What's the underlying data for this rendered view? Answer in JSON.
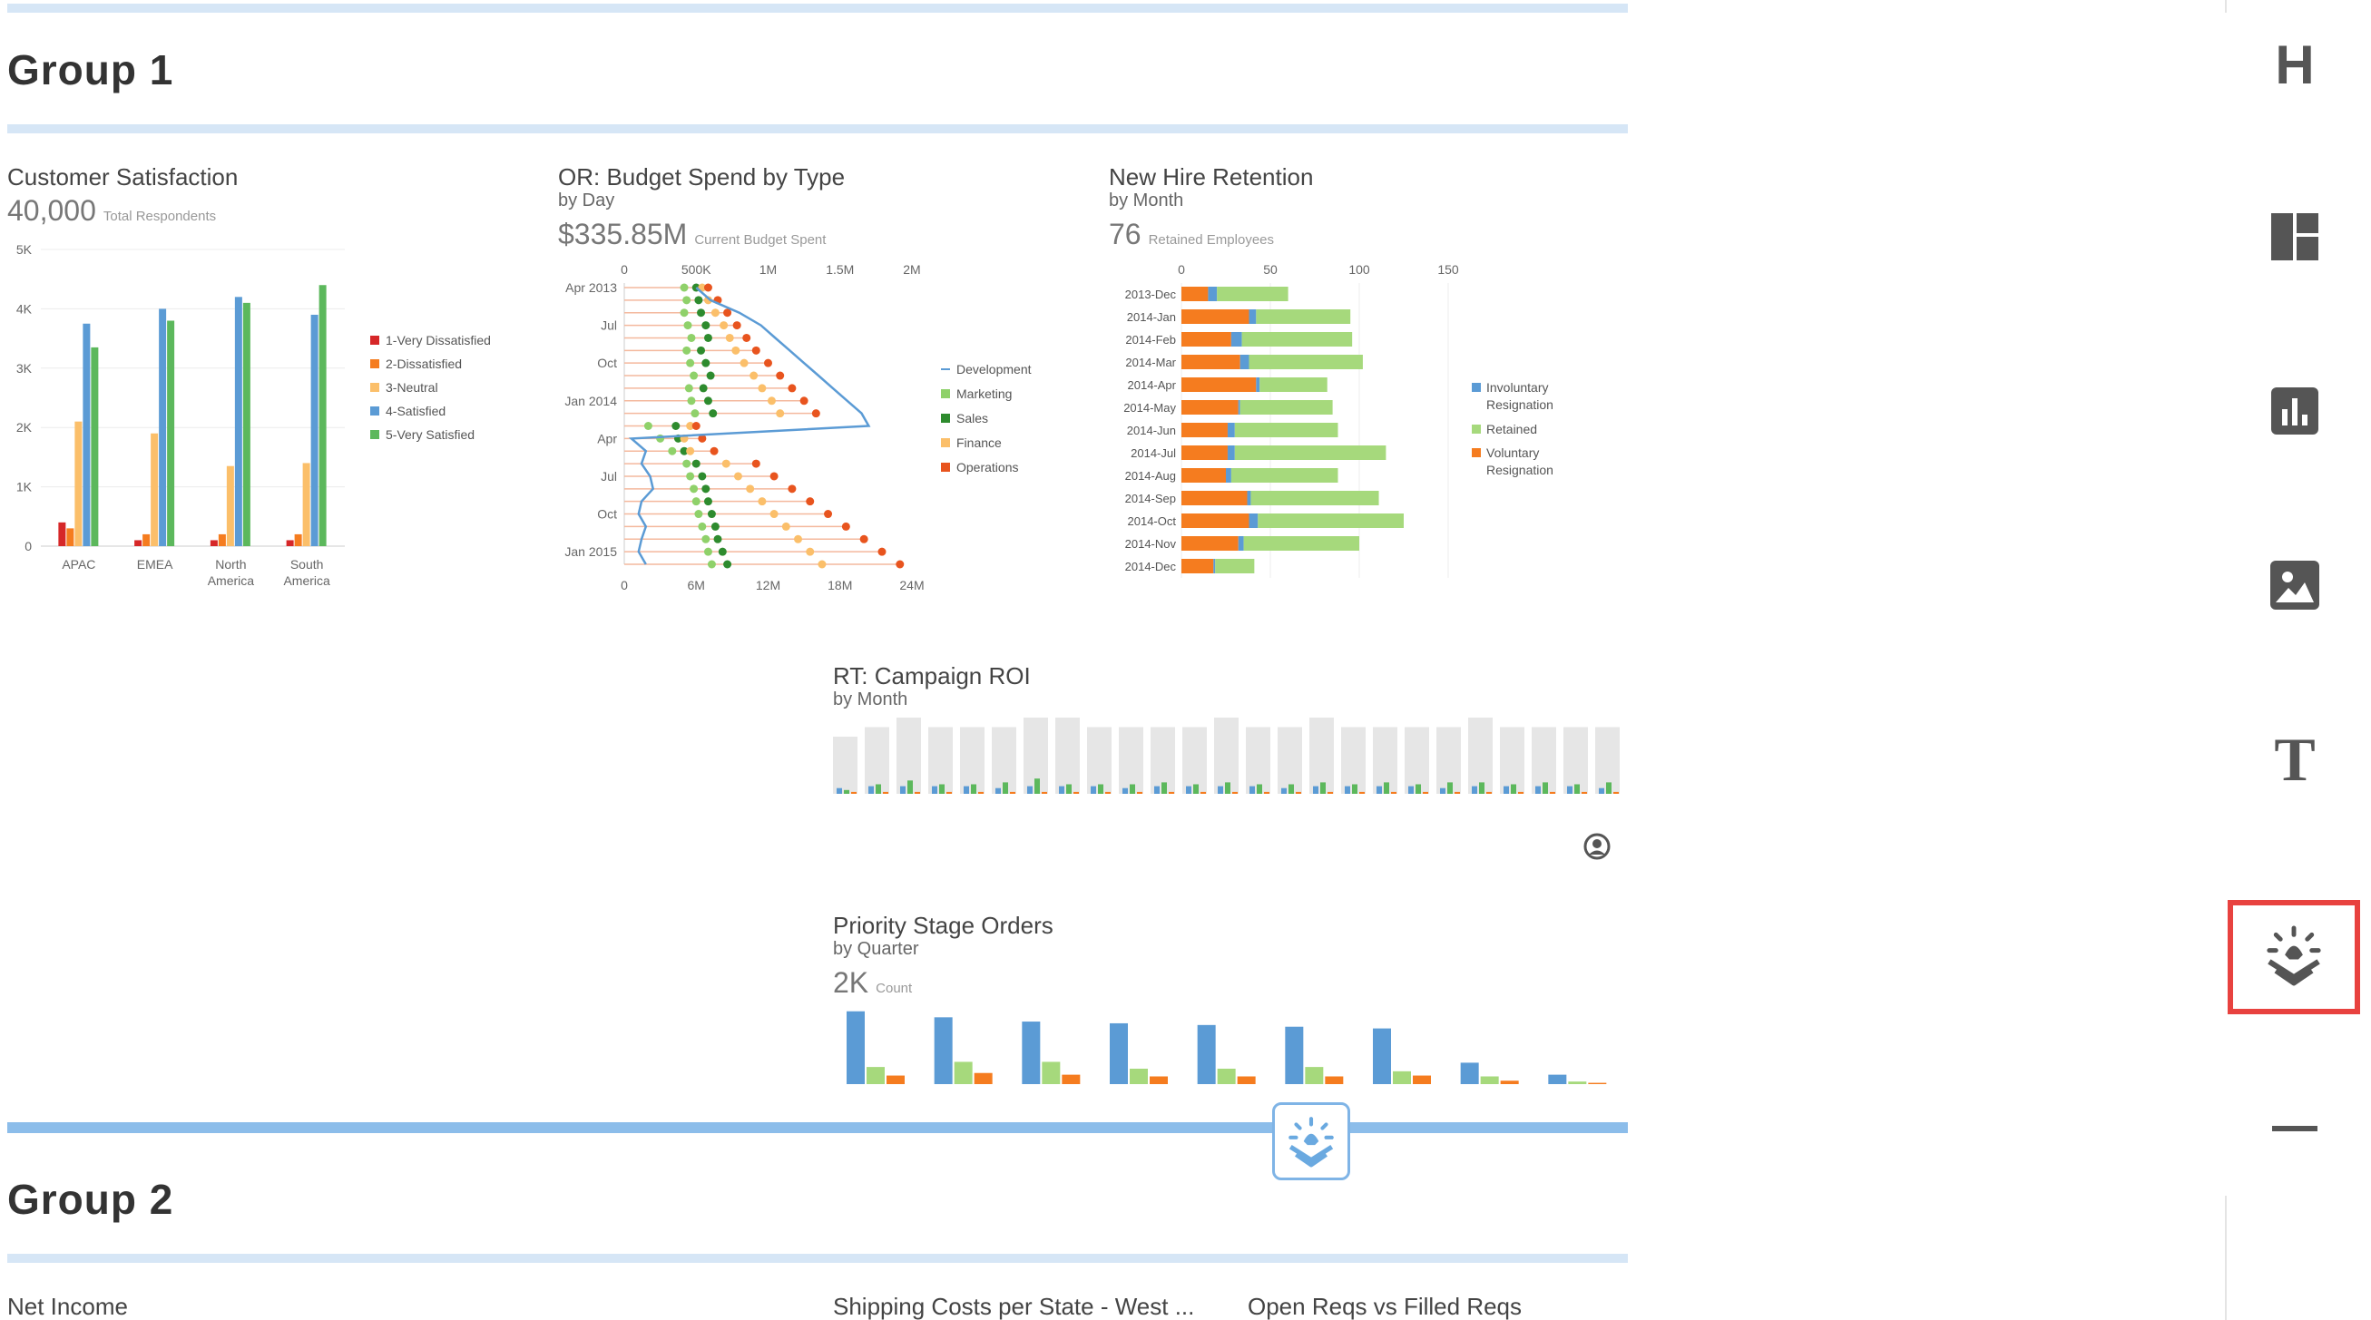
{
  "group1": {
    "title": "Group 1"
  },
  "group2": {
    "title": "Group 2"
  },
  "widgets": {
    "customer_satisfaction": {
      "title": "Customer Satisfaction",
      "kpi_value": "40,000",
      "kpi_label": "Total Respondents"
    },
    "budget_spend": {
      "title": "OR: Budget Spend by Type",
      "subtitle": "by Day",
      "kpi_value": "$335.85M",
      "kpi_label": "Current Budget Spent"
    },
    "new_hire_retention": {
      "title": "New Hire Retention",
      "subtitle": "by Month",
      "kpi_value": "76",
      "kpi_label": "Retained Employees"
    },
    "campaign_roi": {
      "title": "RT: Campaign ROI",
      "subtitle": "by Month"
    },
    "priority_stage": {
      "title": "Priority Stage Orders",
      "subtitle": "by Quarter",
      "kpi_value": "2K",
      "kpi_label": "Count"
    },
    "net_income": {
      "title": "Net Income"
    },
    "shipping_costs": {
      "title": "Shipping Costs per State - West ..."
    },
    "open_reqs": {
      "title": "Open Reqs vs Filled Reqs"
    }
  },
  "chart_data": [
    {
      "id": "customer_satisfaction",
      "type": "bar",
      "categories": [
        "APAC",
        "EMEA",
        "North America",
        "South America"
      ],
      "series": [
        {
          "name": "1-Very Dissatisfied",
          "color": "#d62728",
          "values": [
            400,
            100,
            100,
            100
          ]
        },
        {
          "name": "2-Dissatisfied",
          "color": "#f57c1f",
          "values": [
            300,
            200,
            200,
            200
          ]
        },
        {
          "name": "3-Neutral",
          "color": "#fbbf6a",
          "values": [
            2100,
            1900,
            1350,
            1400
          ]
        },
        {
          "name": "4-Satisfied",
          "color": "#5b9bd5",
          "values": [
            3750,
            4000,
            4200,
            3900
          ]
        },
        {
          "name": "5-Very Satisfied",
          "color": "#5cb85c",
          "values": [
            3350,
            3800,
            4100,
            4400
          ]
        }
      ],
      "yticks": [
        "0",
        "1K",
        "2K",
        "3K",
        "4K",
        "5K"
      ],
      "ylim": [
        0,
        5000
      ],
      "legend": "right"
    },
    {
      "id": "budget_spend",
      "type": "line",
      "y_ticks": [
        "Apr 2013",
        "Jul",
        "Oct",
        "Jan 2014",
        "Apr",
        "Jul",
        "Oct",
        "Jan 2015"
      ],
      "top_axis_ticks": [
        "0",
        "500K",
        "1M",
        "1.5M",
        "2M"
      ],
      "bottom_axis_ticks": [
        "0",
        "6M",
        "12M",
        "18M",
        "24M"
      ],
      "series": [
        {
          "name": "Development",
          "color": "#5b9bd5"
        },
        {
          "name": "Marketing",
          "color": "#8fd16a"
        },
        {
          "name": "Sales",
          "color": "#2e8b2e"
        },
        {
          "name": "Finance",
          "color": "#fbbf6a"
        },
        {
          "name": "Operations",
          "color": "#e8541e"
        }
      ],
      "points": [
        {
          "marketing": 5.0,
          "sales": 6.0,
          "finance": 6.5,
          "operations": 7.0,
          "development": 500000
        },
        {
          "marketing": 5.2,
          "sales": 6.2,
          "finance": 7.0,
          "operations": 7.8,
          "development": 600000
        },
        {
          "marketing": 5.0,
          "sales": 6.4,
          "finance": 7.6,
          "operations": 8.6,
          "development": 800000
        },
        {
          "marketing": 5.3,
          "sales": 6.8,
          "finance": 8.3,
          "operations": 9.4,
          "development": 950000
        },
        {
          "marketing": 5.6,
          "sales": 7.0,
          "finance": 8.8,
          "operations": 10.2,
          "development": 1050000
        },
        {
          "marketing": 5.2,
          "sales": 6.4,
          "finance": 9.3,
          "operations": 11.0,
          "development": 1150000
        },
        {
          "marketing": 5.5,
          "sales": 6.8,
          "finance": 10.0,
          "operations": 12.0,
          "development": 1250000
        },
        {
          "marketing": 5.8,
          "sales": 7.2,
          "finance": 10.8,
          "operations": 13.0,
          "development": 1350000
        },
        {
          "marketing": 5.4,
          "sales": 6.6,
          "finance": 11.5,
          "operations": 14.0,
          "development": 1450000
        },
        {
          "marketing": 5.6,
          "sales": 7.0,
          "finance": 12.3,
          "operations": 15.0,
          "development": 1550000
        },
        {
          "marketing": 5.9,
          "sales": 7.4,
          "finance": 13.0,
          "operations": 16.0,
          "development": 1650000
        },
        {
          "marketing": 2.0,
          "sales": 4.3,
          "finance": 5.5,
          "operations": 6.0,
          "development": 1700000
        },
        {
          "marketing": 3.0,
          "sales": 4.5,
          "finance": 5.0,
          "operations": 6.5,
          "development": 50000
        },
        {
          "marketing": 4.0,
          "sales": 5.0,
          "finance": 5.5,
          "operations": 7.5,
          "development": 150000
        },
        {
          "marketing": 5.2,
          "sales": 6.0,
          "finance": 8.5,
          "operations": 11.0,
          "development": 120000
        },
        {
          "marketing": 5.5,
          "sales": 6.5,
          "finance": 9.5,
          "operations": 12.5,
          "development": 180000
        },
        {
          "marketing": 5.8,
          "sales": 6.8,
          "finance": 10.5,
          "operations": 14.0,
          "development": 200000
        },
        {
          "marketing": 6.0,
          "sales": 7.0,
          "finance": 11.5,
          "operations": 15.5,
          "development": 120000
        },
        {
          "marketing": 6.2,
          "sales": 7.3,
          "finance": 12.5,
          "operations": 17.0,
          "development": 100000
        },
        {
          "marketing": 6.5,
          "sales": 7.6,
          "finance": 13.5,
          "operations": 18.5,
          "development": 150000
        },
        {
          "marketing": 6.8,
          "sales": 7.8,
          "finance": 14.5,
          "operations": 20.0,
          "development": 120000
        },
        {
          "marketing": 7.0,
          "sales": 8.2,
          "finance": 15.5,
          "operations": 21.5,
          "development": 100000
        },
        {
          "marketing": 7.3,
          "sales": 8.6,
          "finance": 16.5,
          "operations": 23.0,
          "development": 150000
        }
      ],
      "legend": "right"
    },
    {
      "id": "new_hire_retention",
      "type": "bar",
      "orientation": "horizontal",
      "stacked": true,
      "categories": [
        "2013-Dec",
        "2014-Jan",
        "2014-Feb",
        "2014-Mar",
        "2014-Apr",
        "2014-May",
        "2014-Jun",
        "2014-Jul",
        "2014-Aug",
        "2014-Sep",
        "2014-Oct",
        "2014-Nov",
        "2014-Dec"
      ],
      "xticks": [
        "0",
        "50",
        "100",
        "150"
      ],
      "xlim": [
        0,
        150
      ],
      "series": [
        {
          "name": "Voluntary Resignation",
          "color": "#f57c1f",
          "values": [
            15,
            38,
            28,
            33,
            42,
            32,
            26,
            26,
            25,
            37,
            38,
            32,
            18
          ]
        },
        {
          "name": "Involuntary Resignation",
          "color": "#5b9bd5",
          "values": [
            5,
            4,
            6,
            5,
            2,
            1,
            4,
            4,
            3,
            2,
            5,
            3,
            1
          ]
        },
        {
          "name": "Retained",
          "color": "#a6d97c",
          "values": [
            40,
            53,
            62,
            64,
            38,
            52,
            58,
            85,
            60,
            72,
            82,
            65,
            22
          ]
        }
      ],
      "legend": "right"
    },
    {
      "id": "campaign_roi",
      "type": "bar",
      "background_values": [
        30,
        35,
        40,
        35,
        35,
        35,
        40,
        40,
        35,
        35,
        35,
        35,
        40,
        35,
        35,
        40,
        35,
        35,
        35,
        35,
        40,
        35,
        35,
        35,
        35
      ],
      "series": [
        {
          "name": "",
          "color": "#5b9bd5",
          "values": [
            3,
            4,
            4,
            4,
            4,
            3,
            4,
            4,
            4,
            3,
            4,
            4,
            4,
            4,
            3,
            4,
            4,
            4,
            4,
            3,
            4,
            4,
            4,
            4,
            3
          ]
        },
        {
          "name": "",
          "color": "#5cb85c",
          "values": [
            2,
            5,
            7,
            5,
            5,
            6,
            8,
            5,
            5,
            5,
            6,
            5,
            6,
            5,
            5,
            6,
            5,
            6,
            5,
            6,
            6,
            5,
            6,
            5,
            6
          ]
        },
        {
          "name": "",
          "color": "#f57c1f",
          "values": [
            1,
            1,
            1,
            1,
            1,
            1,
            1,
            1,
            1,
            1,
            1,
            1,
            1,
            1,
            1,
            1,
            1,
            1,
            1,
            1,
            1,
            1,
            1,
            1,
            1
          ]
        }
      ]
    },
    {
      "id": "priority_stage",
      "type": "bar",
      "series": [
        {
          "name": "",
          "color": "#5b9bd5",
          "values": [
            850,
            780,
            730,
            710,
            690,
            670,
            650,
            250,
            110
          ]
        },
        {
          "name": "",
          "color": "#a6d97c",
          "values": [
            200,
            260,
            260,
            180,
            180,
            200,
            150,
            90,
            30
          ]
        },
        {
          "name": "",
          "color": "#f57c1f",
          "values": [
            100,
            130,
            110,
            90,
            90,
            90,
            100,
            40,
            15
          ]
        }
      ],
      "ylim": [
        0,
        900
      ]
    }
  ],
  "drop_target": {
    "icon": "smart-insight-icon"
  },
  "toolbar": {
    "heading_label": "H",
    "text_label": "T",
    "items": [
      {
        "name": "heading-tool",
        "icon": "heading-icon"
      },
      {
        "name": "layout-tool",
        "icon": "layout-icon"
      },
      {
        "name": "chart-tool",
        "icon": "bar-chart-icon"
      },
      {
        "name": "image-tool",
        "icon": "image-icon"
      },
      {
        "name": "text-tool",
        "icon": "text-icon"
      },
      {
        "name": "smart-insight-tool",
        "icon": "smart-insight-icon",
        "selected": true
      },
      {
        "name": "divider-tool",
        "icon": "divider-icon"
      }
    ],
    "selection_color": "#e8423f"
  }
}
